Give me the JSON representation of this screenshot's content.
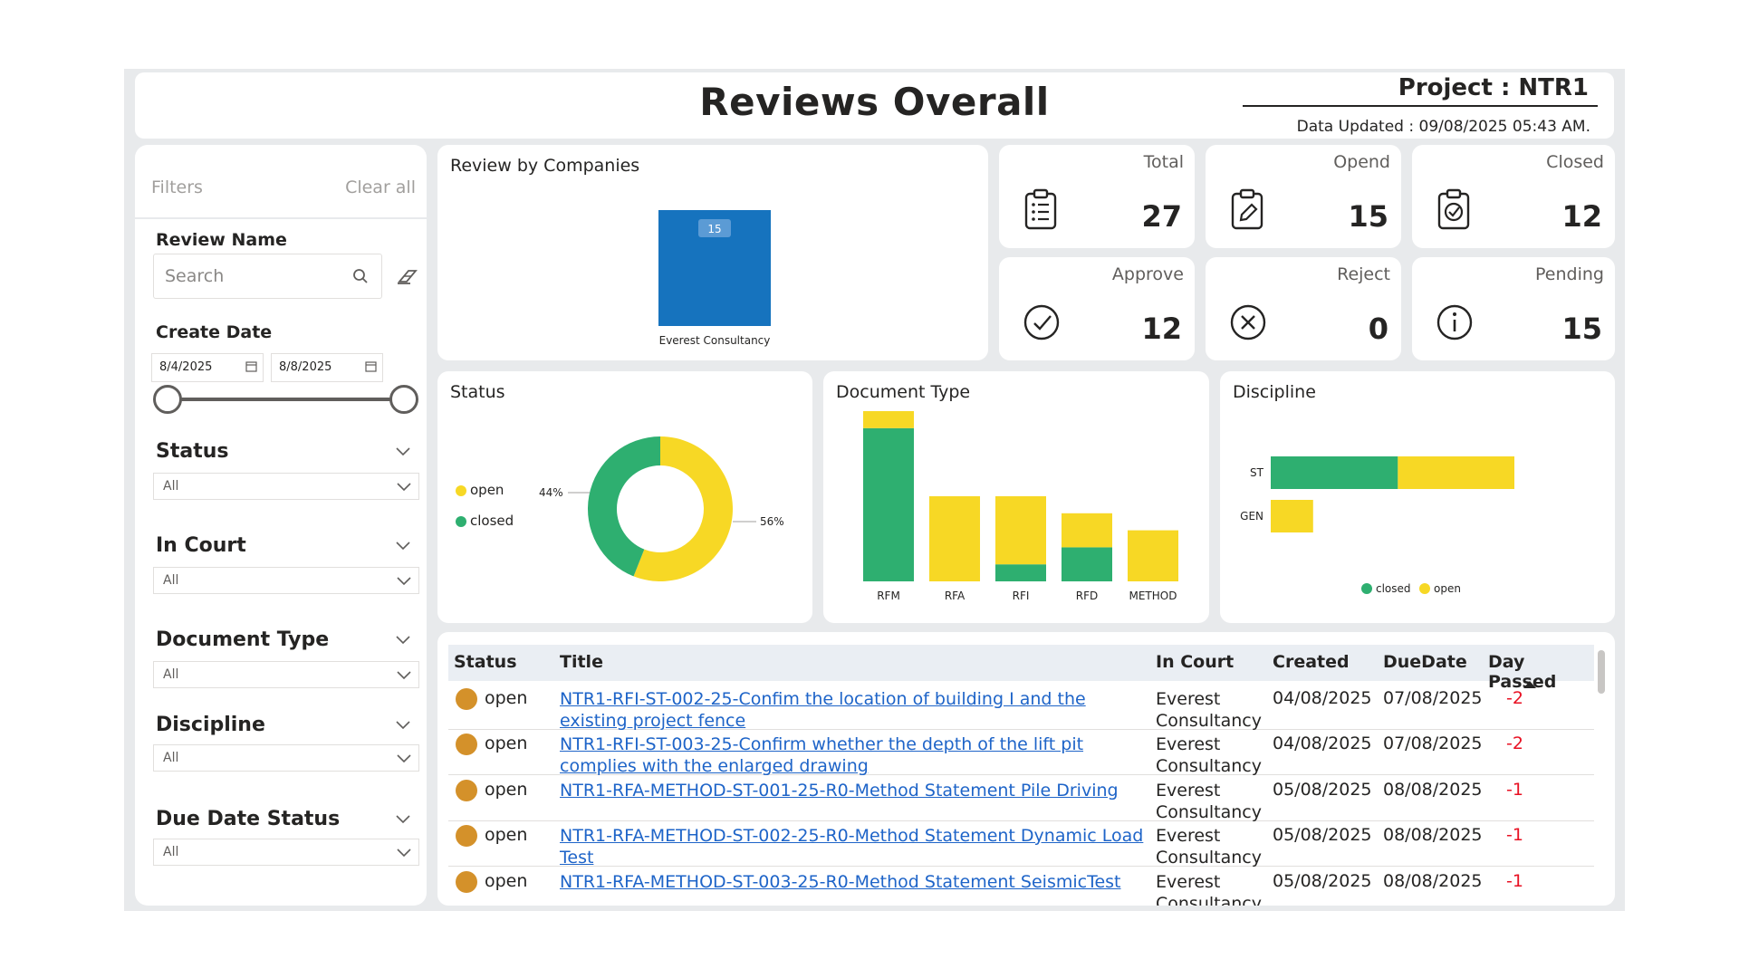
{
  "header": {
    "title": "Reviews Overall",
    "project": "Project : NTR1",
    "updated": "Data Updated : 09/08/2025 05:43 AM."
  },
  "filters": {
    "title": "Filters",
    "clear_all": "Clear all",
    "review_name_label": "Review Name",
    "search_placeholder": "Search",
    "create_date_label": "Create Date",
    "date_from": "8/4/2025",
    "date_to": "8/8/2025",
    "status_label": "Status",
    "status_value": "All",
    "in_court_label": "In Court",
    "in_court_value": "All",
    "doc_type_label": "Document Type",
    "doc_type_value": "All",
    "discipline_label": "Discipline",
    "discipline_value": "All",
    "due_date_label": "Due Date Status",
    "due_date_value": "All"
  },
  "kpis": [
    {
      "label": "Total",
      "value": "27",
      "icon": "clipboard-list-icon"
    },
    {
      "label": "Opend",
      "value": "15",
      "icon": "clipboard-edit-icon"
    },
    {
      "label": "Closed",
      "value": "12",
      "icon": "clipboard-check-icon"
    },
    {
      "label": "Approve",
      "value": "12",
      "icon": "check-circle-icon"
    },
    {
      "label": "Reject",
      "value": "0",
      "icon": "x-circle-icon"
    },
    {
      "label": "Pending",
      "value": "15",
      "icon": "info-circle-icon"
    }
  ],
  "colors": {
    "open": "#f7d825",
    "closed": "#2eaf70",
    "company_bar": "#1673be",
    "link": "#1e64c8",
    "negative": "#e81123",
    "open_dot": "#d4912a"
  },
  "chart_data": [
    {
      "type": "bar",
      "title": "Review by Companies",
      "categories": [
        "Everest Consultancy"
      ],
      "values": [
        15
      ],
      "data_labels": [
        "15"
      ]
    },
    {
      "type": "pie",
      "title": "Status",
      "variant": "donut",
      "labels": [
        "open",
        "closed"
      ],
      "values": [
        56,
        44
      ],
      "data_labels": [
        "56%",
        "44%"
      ],
      "legend": "left"
    },
    {
      "type": "bar",
      "title": "Document Type",
      "stacked": true,
      "categories": [
        "RFM",
        "RFA",
        "RFI",
        "RFD",
        "METHOD"
      ],
      "series": [
        {
          "name": "closed",
          "values": [
            9,
            0,
            1,
            2,
            0
          ]
        },
        {
          "name": "open",
          "values": [
            1,
            5,
            4,
            2,
            3
          ]
        }
      ]
    },
    {
      "type": "bar",
      "title": "Discipline",
      "orientation": "horizontal",
      "stacked": true,
      "categories": [
        "ST",
        "GEN"
      ],
      "series": [
        {
          "name": "closed",
          "values": [
            12,
            0
          ]
        },
        {
          "name": "open",
          "values": [
            11,
            4
          ]
        }
      ],
      "legend": "bottom"
    }
  ],
  "table": {
    "headers": [
      "Status",
      "Title",
      "In Court",
      "Created",
      "DueDate",
      "Day Passed"
    ],
    "rows": [
      {
        "status": "open",
        "title": "NTR1-RFI-ST-002-25-Confim the location of building I and the existing project fence",
        "court": "Everest Consultancy",
        "created": "04/08/2025",
        "due": "07/08/2025",
        "days": "-2"
      },
      {
        "status": "open",
        "title": "NTR1-RFI-ST-003-25-Confirm whether the depth of the lift pit complies with the enlarged drawing",
        "court": "Everest Consultancy",
        "created": "04/08/2025",
        "due": "07/08/2025",
        "days": "-2"
      },
      {
        "status": "open",
        "title": "NTR1-RFA-METHOD-ST-001-25-R0-Method Statement Pile Driving",
        "court": "Everest Consultancy",
        "created": "05/08/2025",
        "due": "08/08/2025",
        "days": "-1"
      },
      {
        "status": "open",
        "title": "NTR1-RFA-METHOD-ST-002-25-R0-Method Statement Dynamic Load Test",
        "court": "Everest Consultancy",
        "created": "05/08/2025",
        "due": "08/08/2025",
        "days": "-1"
      },
      {
        "status": "open",
        "title": "NTR1-RFA-METHOD-ST-003-25-R0-Method Statement SeismicTest",
        "court": "Everest Consultancy",
        "created": "05/08/2025",
        "due": "08/08/2025",
        "days": "-1"
      }
    ]
  }
}
